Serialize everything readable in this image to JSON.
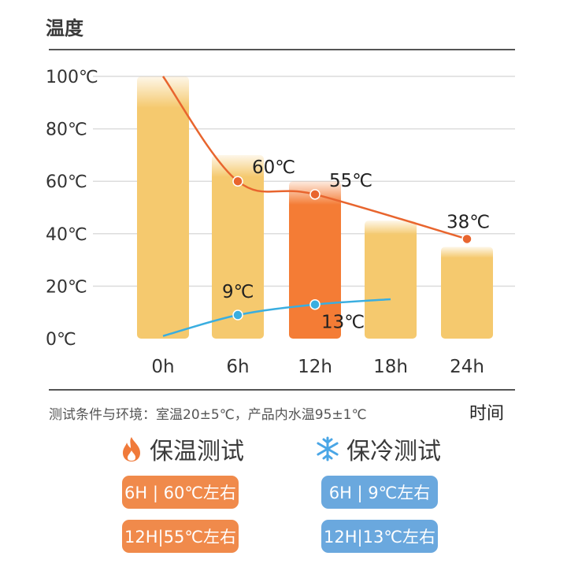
{
  "header": {
    "y_axis_title": "温度",
    "x_axis_title": "时间"
  },
  "footnote": "测试条件与环境：室温20±5℃，产品内水温95±1℃",
  "legend": {
    "warm_label": "保温测试",
    "warm_icon": "flame-icon",
    "cold_label": "保冷测试",
    "cold_icon": "snowflake-icon"
  },
  "badges": {
    "warm_6h": "6H | 60℃左右",
    "warm_12h": "12H|55℃左右",
    "cold_6h": "6H | 9℃左右",
    "cold_12h": "12H|13℃左右"
  },
  "colors": {
    "warm": "#f08a4b",
    "cold": "#6aa8de",
    "bar": "#f5c96e",
    "bar_highlight": "#f47c35",
    "warm_line": "#e8652e",
    "cold_line": "#3aaee0"
  },
  "chart_data": {
    "type": "bar",
    "categories": [
      "0h",
      "6h",
      "12h",
      "18h",
      "24h"
    ],
    "values": [
      100,
      70,
      60,
      45,
      35
    ],
    "highlight_index": 2,
    "ylim": [
      0,
      100
    ],
    "yticks": [
      0,
      20,
      40,
      60,
      80,
      100
    ],
    "ytick_labels": [
      "0℃",
      "20℃",
      "40℃",
      "60℃",
      "80℃",
      "100℃"
    ],
    "grid": true,
    "series": [
      {
        "name": "保温测试",
        "type": "line",
        "x": [
          0,
          6,
          12,
          24
        ],
        "y": [
          100,
          60,
          55,
          38
        ],
        "point_labels": [
          "",
          "60℃",
          "55℃",
          "38℃"
        ]
      },
      {
        "name": "保冷测试",
        "type": "line",
        "x": [
          0,
          6,
          12,
          18
        ],
        "y": [
          1,
          9,
          13,
          15
        ],
        "point_labels": [
          "",
          "9℃",
          "13℃",
          ""
        ]
      }
    ]
  }
}
